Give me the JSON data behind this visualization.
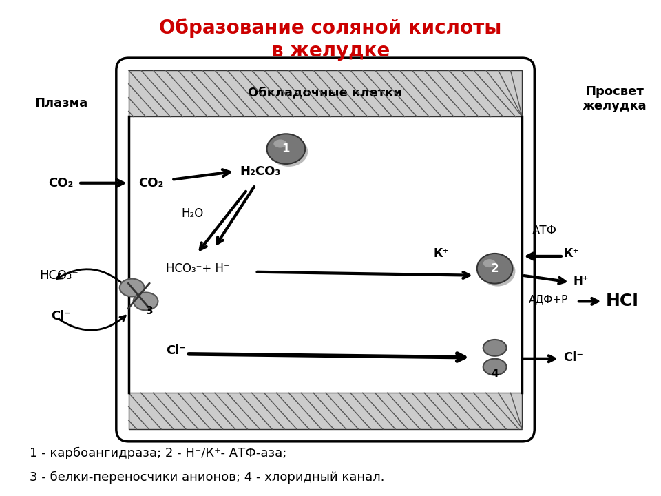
{
  "title_line1": "Образование соляной кислоты",
  "title_line2": "в желудке",
  "title_color": "#cc0000",
  "title_fontsize": 20,
  "bg_color": "#ffffff",
  "legend_line1": "1 - карбоангидраза; 2 - Н⁺/К⁺- АТФ-аза;",
  "legend_line2": "3 - белки-переносчики анионов; 4 - хлоридный канал."
}
